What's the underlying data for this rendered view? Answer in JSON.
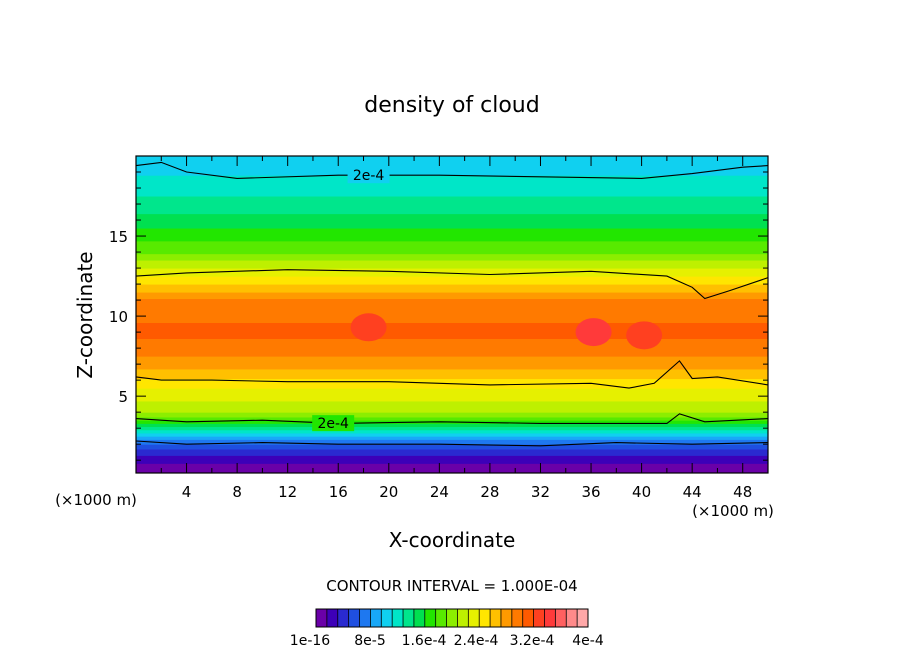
{
  "chart_data": {
    "type": "heatmap",
    "title": "density of cloud",
    "xlabel": "X-coordinate",
    "ylabel": "Z-coordinate",
    "x_unit_left": "(×1000 m)",
    "x_unit_right": "(×1000 m)",
    "xlim": [
      0,
      50
    ],
    "ylim": [
      0.2,
      20
    ],
    "x_ticks": [
      4,
      8,
      12,
      16,
      20,
      24,
      28,
      32,
      36,
      40,
      44,
      48
    ],
    "y_ticks": [
      5,
      10,
      15
    ],
    "contour_interval_text": "CONTOUR INTERVAL = 1.000E-04",
    "contour_labels": [
      "2e-4",
      "2e-4"
    ],
    "colorbar_labels": [
      "1e-16",
      "8e-5",
      "1.6e-4",
      "2.4e-4",
      "3.2e-4",
      "4e-4"
    ],
    "colorbar_colors": [
      "#6a00a8",
      "#3d00b8",
      "#2a2ad0",
      "#1f4fe0",
      "#1e78f0",
      "#18a8f8",
      "#10d0f0",
      "#00e6c8",
      "#00e68c",
      "#00e050",
      "#22e600",
      "#58ea00",
      "#8cee00",
      "#bef000",
      "#e6f000",
      "#ffe600",
      "#ffc000",
      "#ff9a00",
      "#ff7a00",
      "#ff5a00",
      "#ff4020",
      "#ff3a3a",
      "#ff6060",
      "#ff8a8a",
      "#ffa8a8"
    ],
    "bands": [
      {
        "z": 0.2,
        "value": 1e-16
      },
      {
        "z": 1.0,
        "value": 2e-05
      },
      {
        "z": 1.7,
        "value": 5e-05
      },
      {
        "z": 2.3,
        "value": 8e-05
      },
      {
        "z": 2.8,
        "value": 0.00012
      },
      {
        "z": 3.3,
        "value": 0.00016
      },
      {
        "z": 4.0,
        "value": 0.00021
      },
      {
        "z": 5.5,
        "value": 0.00024
      },
      {
        "z": 7.0,
        "value": 0.00028
      },
      {
        "z": 9.0,
        "value": 0.00031
      },
      {
        "z": 11.0,
        "value": 0.00029
      },
      {
        "z": 12.5,
        "value": 0.00024
      },
      {
        "z": 14.0,
        "value": 0.00019
      },
      {
        "z": 16.0,
        "value": 0.00015
      },
      {
        "z": 18.0,
        "value": 0.00012
      },
      {
        "z": 20.0,
        "value": 0.0001
      }
    ],
    "contour_lines": [
      {
        "label": "2e-4",
        "points": [
          [
            0,
            19.4
          ],
          [
            2,
            19.6
          ],
          [
            4,
            19.0
          ],
          [
            8,
            18.6
          ],
          [
            16,
            18.8
          ],
          [
            24,
            18.8
          ],
          [
            32,
            18.7
          ],
          [
            40,
            18.6
          ],
          [
            44,
            18.9
          ],
          [
            48,
            19.3
          ],
          [
            50,
            19.4
          ]
        ]
      },
      {
        "points": [
          [
            0,
            12.5
          ],
          [
            4,
            12.7
          ],
          [
            12,
            12.9
          ],
          [
            20,
            12.8
          ],
          [
            28,
            12.6
          ],
          [
            36,
            12.8
          ],
          [
            42,
            12.5
          ],
          [
            44,
            11.8
          ],
          [
            45,
            11.1
          ],
          [
            47,
            11.6
          ],
          [
            50,
            12.4
          ]
        ]
      },
      {
        "points": [
          [
            0,
            6.2
          ],
          [
            2,
            6.0
          ],
          [
            6,
            6.0
          ],
          [
            12,
            5.9
          ],
          [
            20,
            5.9
          ],
          [
            28,
            5.7
          ],
          [
            36,
            5.8
          ],
          [
            39,
            5.5
          ],
          [
            41,
            5.8
          ],
          [
            43,
            7.2
          ],
          [
            44,
            6.1
          ],
          [
            46,
            6.2
          ],
          [
            50,
            5.7
          ]
        ]
      },
      {
        "label": "2e-4",
        "points": [
          [
            0,
            3.6
          ],
          [
            4,
            3.4
          ],
          [
            10,
            3.5
          ],
          [
            16,
            3.3
          ],
          [
            24,
            3.4
          ],
          [
            32,
            3.3
          ],
          [
            38,
            3.3
          ],
          [
            42,
            3.3
          ],
          [
            43,
            3.9
          ],
          [
            45,
            3.4
          ],
          [
            50,
            3.6
          ]
        ]
      },
      {
        "points": [
          [
            0,
            2.2
          ],
          [
            4,
            2.0
          ],
          [
            10,
            2.1
          ],
          [
            16,
            2.0
          ],
          [
            24,
            2.0
          ],
          [
            32,
            1.9
          ],
          [
            38,
            2.1
          ],
          [
            44,
            2.0
          ],
          [
            50,
            2.1
          ]
        ]
      }
    ],
    "hot_spots": [
      {
        "x": 36.2,
        "z": 9.0,
        "value": 0.00034
      },
      {
        "x": 40.2,
        "z": 8.8,
        "value": 0.00033
      },
      {
        "x": 18.4,
        "z": 9.3,
        "value": 0.00033
      }
    ]
  }
}
